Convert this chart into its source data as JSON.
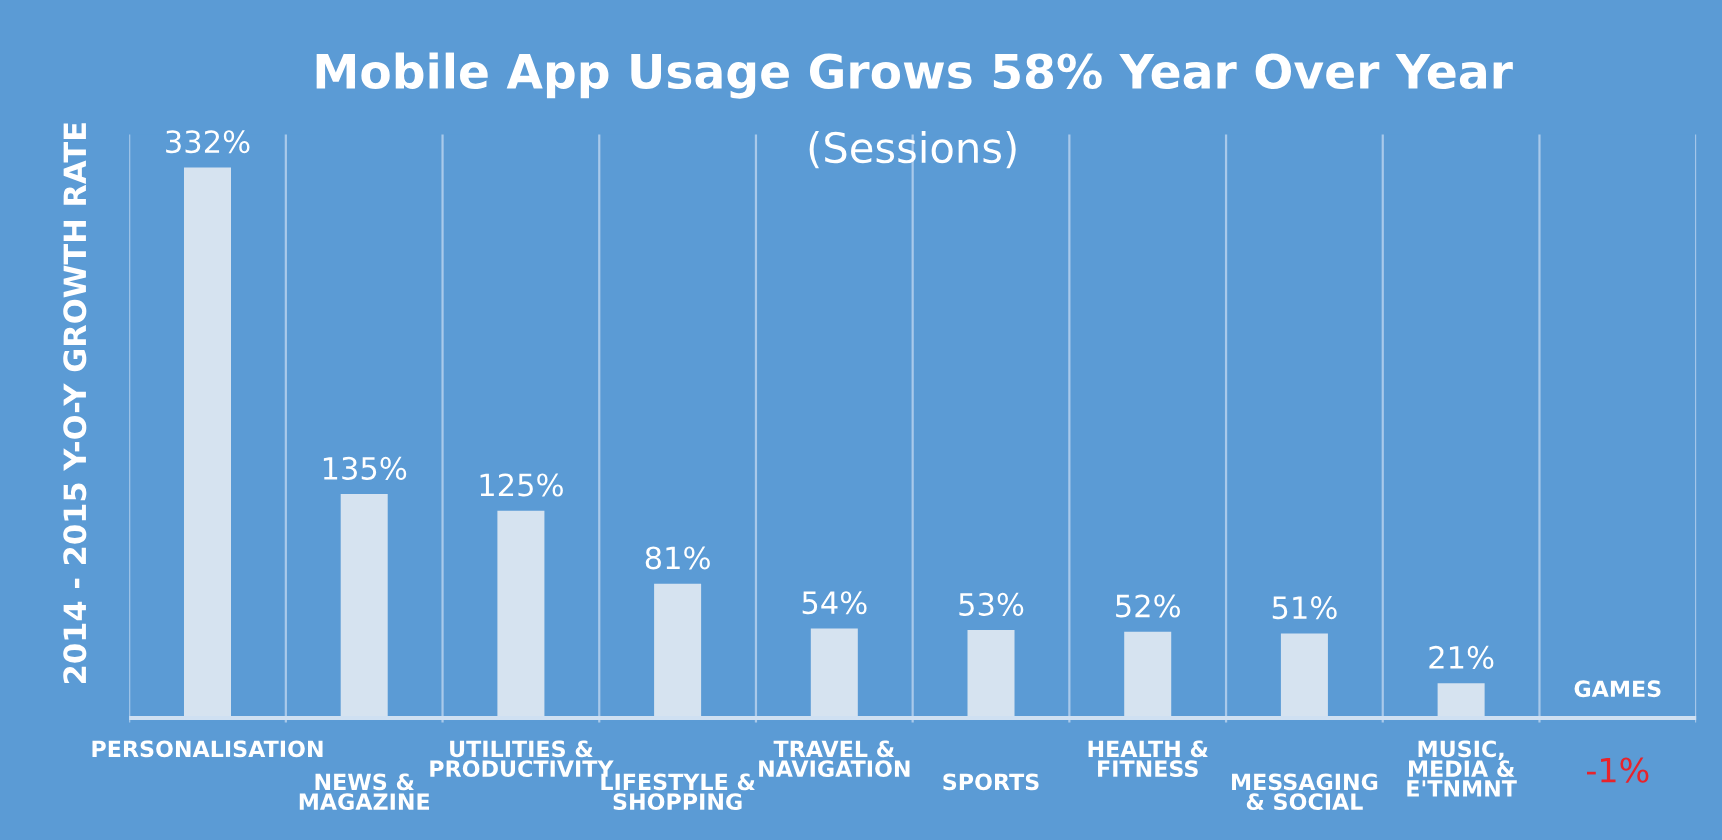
{
  "chart_data": {
    "type": "bar",
    "title": "Mobile App Usage Grows 58% Year Over Year",
    "subtitle": "(Sessions)",
    "ylabel": "2014 - 2015 Y-O-Y GROWTH RATE",
    "categories": [
      "PERSONALISATION",
      "NEWS &\nMAGAZINE",
      "UTILITIES &\nPRODUCTIVITY",
      "LIFESTYLE &\nSHOPPING",
      "TRAVEL &\nNAVIGATION",
      "SPORTS",
      "HEALTH &\nFITNESS",
      "MESSAGING\n& SOCIAL",
      "MUSIC,\nMEDIA &\nE'TNMNT",
      "GAMES"
    ],
    "values": [
      332,
      135,
      125,
      81,
      54,
      53,
      52,
      51,
      21,
      -1
    ],
    "value_labels": [
      "332%",
      "135%",
      "125%",
      "81%",
      "54%",
      "53%",
      "52%",
      "51%",
      "21%",
      "-1%"
    ],
    "colors": [
      "#d6e3f0",
      "#d6e3f0",
      "#d6e3f0",
      "#d6e3f0",
      "#d6e3f0",
      "#d6e3f0",
      "#d6e3f0",
      "#d6e3f0",
      "#d6e3f0",
      "#e8232b"
    ],
    "grid": "x"
  }
}
